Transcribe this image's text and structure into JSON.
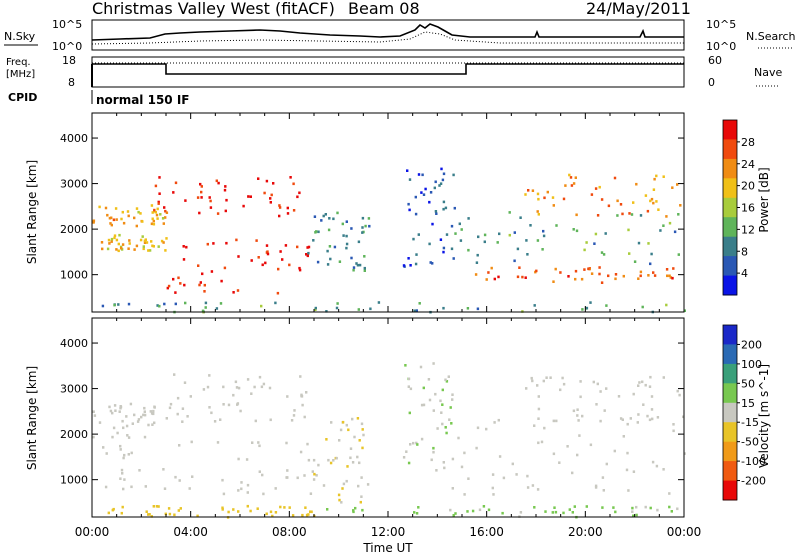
{
  "header": {
    "title": "Christmas Valley West (fitACF)",
    "beam": "Beam 08",
    "date": "24/May/2011"
  },
  "noise_panel": {
    "left_label": "N.Sky",
    "right_label": "N.Search",
    "left_ticks": [
      "10^5",
      "10^0"
    ],
    "right_ticks": [
      "10^5",
      "10^0"
    ]
  },
  "freq_panel": {
    "left_label_line1": "Freq.",
    "left_label_line2": "[MHz]",
    "right_label": "Nave",
    "left_ticks": [
      "18",
      "8"
    ],
    "right_ticks": [
      "60",
      "0"
    ]
  },
  "cpid": {
    "label": "CPID",
    "value": "normal 150 IF"
  },
  "x_axis": {
    "label": "Time UT",
    "ticks": [
      "00:00",
      "04:00",
      "08:00",
      "12:00",
      "16:00",
      "20:00",
      "00:00"
    ]
  },
  "chart_data": [
    {
      "type": "heatmap",
      "title": "Power",
      "ylabel": "Slant Range [km]",
      "colorbar_label": "Power [dB]",
      "colorbar_ticks": [
        "28",
        "24",
        "20",
        "16",
        "12",
        "8",
        "4"
      ],
      "colors": [
        "#0a14e6",
        "#2a58b4",
        "#3a7e8a",
        "#5fb45a",
        "#a8cc3c",
        "#f0c018",
        "#f08c14",
        "#f04a0e",
        "#e80808"
      ],
      "y_ticks": [
        "4000",
        "3000",
        "2000",
        "1000"
      ],
      "x_range_hours": [
        0,
        24
      ],
      "y_range_km": [
        180,
        4550
      ],
      "regions": [
        {
          "t0": 0.0,
          "t1": 3.0,
          "r_low": 2050,
          "r_high": 2550,
          "value": 20
        },
        {
          "t0": 0.0,
          "t1": 3.0,
          "r_low": 1550,
          "r_high": 1900,
          "value": 18
        },
        {
          "t0": 3.0,
          "t1": 8.8,
          "r_low": 600,
          "r_high": 1900,
          "value": 28
        },
        {
          "t0": 2.5,
          "t1": 8.5,
          "r_low": 2300,
          "r_high": 3200,
          "value": 28
        },
        {
          "t0": 8.7,
          "t1": 11.2,
          "r_low": 1100,
          "r_high": 2400,
          "value": 8
        },
        {
          "t0": 12.6,
          "t1": 14.8,
          "r_low": 1200,
          "r_high": 3600,
          "value": 6
        },
        {
          "t0": 14.5,
          "t1": 24.0,
          "r_low": 1250,
          "r_high": 2400,
          "value": 10
        },
        {
          "t0": 15.5,
          "t1": 24.0,
          "r_low": 850,
          "r_high": 1200,
          "value": 24
        },
        {
          "t0": 17.5,
          "t1": 24.0,
          "r_low": 2300,
          "r_high": 3250,
          "value": 22
        },
        {
          "t0": 0.0,
          "t1": 24.0,
          "r_low": 200,
          "r_high": 420,
          "value": 10
        }
      ]
    },
    {
      "type": "heatmap",
      "title": "Velocity",
      "ylabel": "Slant Range [km]",
      "colorbar_label": "Velocity [m s^-1]",
      "colorbar_ticks": [
        "200",
        "100",
        "50",
        "15",
        "-15",
        "-50",
        "-100",
        "-200"
      ],
      "colors": [
        "#e80808",
        "#f05a10",
        "#f09a18",
        "#e8c428",
        "#c8c8c0",
        "#78c850",
        "#3aa07a",
        "#2a6ab4",
        "#1a28c8"
      ],
      "y_ticks": [
        "4000",
        "3000",
        "2000",
        "1000"
      ],
      "x_range_hours": [
        0,
        24
      ],
      "y_range_km": [
        180,
        4550
      ],
      "regions": [
        {
          "t0": 0.0,
          "t1": 3.0,
          "r_low": 1950,
          "r_high": 2700,
          "value": 0
        },
        {
          "t0": 0.0,
          "t1": 9.0,
          "r_low": 700,
          "r_high": 1900,
          "value": 0
        },
        {
          "t0": 3.0,
          "t1": 8.8,
          "r_low": 2300,
          "r_high": 3350,
          "value": 0
        },
        {
          "t0": 8.7,
          "t1": 11.2,
          "r_low": 500,
          "r_high": 2400,
          "value": -20
        },
        {
          "t0": 12.6,
          "t1": 14.8,
          "r_low": 1200,
          "r_high": 3600,
          "value": 20
        },
        {
          "t0": 14.5,
          "t1": 24.0,
          "r_low": 700,
          "r_high": 2400,
          "value": 0
        },
        {
          "t0": 17.5,
          "t1": 24.0,
          "r_low": 2300,
          "r_high": 3300,
          "value": 0
        },
        {
          "t0": 0.0,
          "t1": 9.0,
          "r_low": 200,
          "r_high": 450,
          "value": -60
        },
        {
          "t0": 9.0,
          "t1": 24.0,
          "r_low": 200,
          "r_high": 450,
          "value": 40
        }
      ]
    }
  ]
}
